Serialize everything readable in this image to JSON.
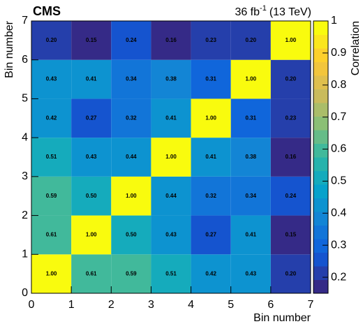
{
  "chart_data": {
    "type": "heatmap",
    "title": "CMS",
    "annotation": {
      "prefix": "36 fb",
      "superscript": "-1",
      "suffix": "(13 TeV)"
    },
    "x_label": "Bin number",
    "y_label": "Bin number",
    "colorbar_label": "Correlation",
    "xbins": [
      0,
      1,
      2,
      3,
      4,
      5,
      6,
      7
    ],
    "ybins": [
      0,
      1,
      2,
      3,
      4,
      5,
      6,
      7
    ],
    "values": [
      [
        1.0,
        0.61,
        0.59,
        0.51,
        0.42,
        0.43,
        0.2
      ],
      [
        0.61,
        1.0,
        0.5,
        0.43,
        0.27,
        0.41,
        0.15
      ],
      [
        0.59,
        0.5,
        1.0,
        0.44,
        0.32,
        0.34,
        0.24
      ],
      [
        0.51,
        0.43,
        0.44,
        1.0,
        0.41,
        0.38,
        0.16
      ],
      [
        0.42,
        0.27,
        0.32,
        0.41,
        1.0,
        0.31,
        0.23
      ],
      [
        0.43,
        0.41,
        0.34,
        0.38,
        0.31,
        1.0,
        0.2
      ],
      [
        0.2,
        0.15,
        0.24,
        0.16,
        0.23,
        0.2,
        1.0
      ]
    ],
    "value_labels": [
      [
        "1.00",
        "0.61",
        "0.59",
        "0.51",
        "0.42",
        "0.43",
        "0.20"
      ],
      [
        "0.61",
        "1.00",
        "0.50",
        "0.43",
        "0.27",
        "0.41",
        "0.15"
      ],
      [
        "0.59",
        "0.50",
        "1.00",
        "0.44",
        "0.32",
        "0.34",
        "0.24"
      ],
      [
        "0.51",
        "0.43",
        "0.44",
        "1.00",
        "0.41",
        "0.38",
        "0.16"
      ],
      [
        "0.42",
        "0.27",
        "0.32",
        "0.41",
        "1.00",
        "0.31",
        "0.23"
      ],
      [
        "0.43",
        "0.41",
        "0.34",
        "0.38",
        "0.31",
        "1.00",
        "0.20"
      ],
      [
        "0.20",
        "0.15",
        "0.24",
        "0.16",
        "0.23",
        "0.20",
        "1.00"
      ]
    ],
    "xlim": [
      0,
      7
    ],
    "ylim": [
      0,
      7
    ],
    "xticks": [
      0,
      1,
      2,
      3,
      4,
      5,
      6,
      7
    ],
    "yticks": [
      0,
      1,
      2,
      3,
      4,
      5,
      6,
      7
    ],
    "zlim": [
      0.15,
      1
    ],
    "zticks": [
      0.2,
      0.3,
      0.4,
      0.5,
      0.6,
      0.7,
      0.8,
      0.9,
      1
    ],
    "colormap": [
      "#352a87",
      "#0f5cdd",
      "#1481d6",
      "#06a4ca",
      "#2eb7a4",
      "#87bf77",
      "#d1bb59",
      "#fec832",
      "#f9fb0e"
    ]
  }
}
